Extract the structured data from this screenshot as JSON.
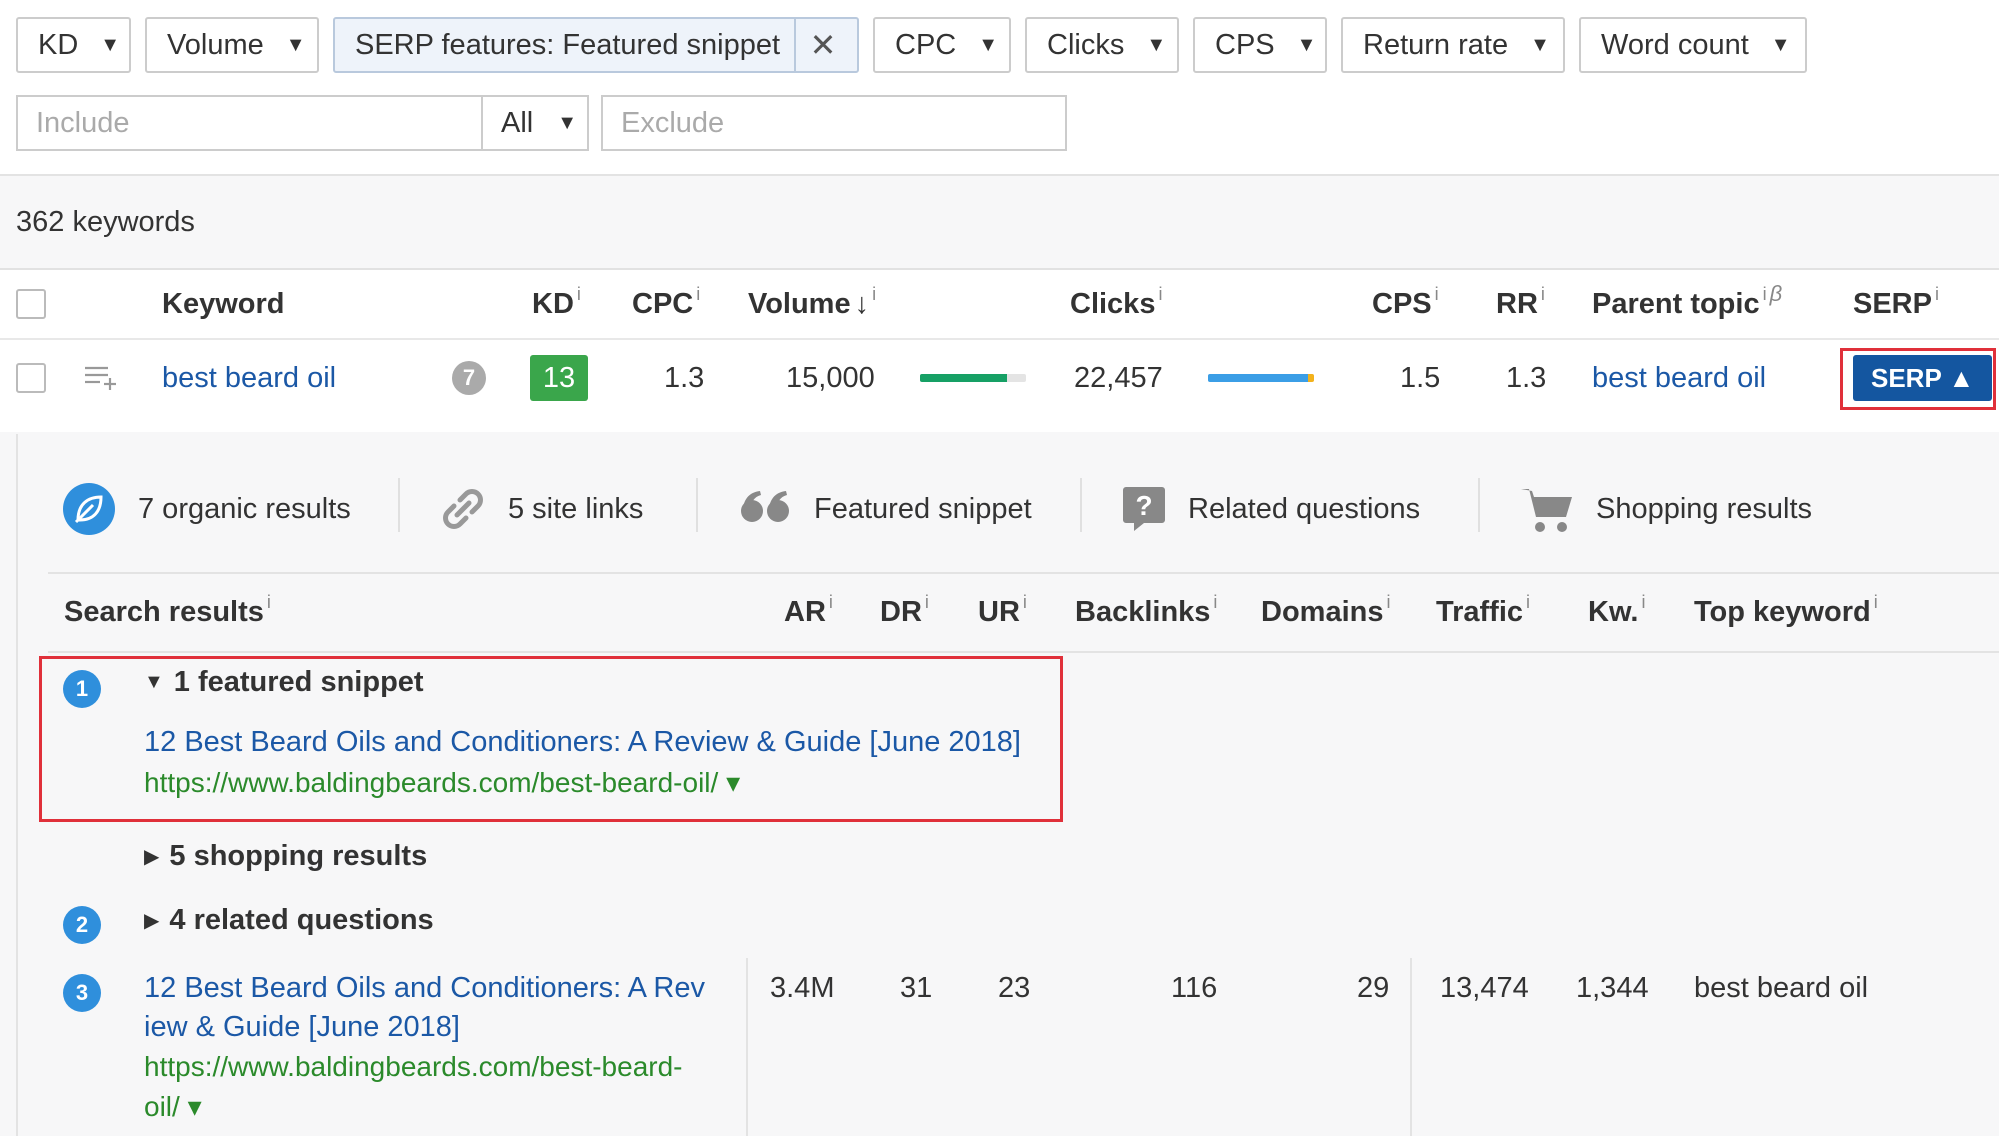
{
  "filters": {
    "kd": "KD",
    "volume": "Volume",
    "serp_features": "SERP features: Featured snippet",
    "cpc": "CPC",
    "clicks": "Clicks",
    "cps": "CPS",
    "return_rate": "Return rate",
    "word_count": "Word count",
    "include_placeholder": "Include",
    "match_select": "All",
    "exclude_placeholder": "Exclude"
  },
  "summary": {
    "count_text": "362 keywords"
  },
  "keyword_table": {
    "headers": {
      "keyword": "Keyword",
      "kd": "KD",
      "cpc": "CPC",
      "volume": "Volume",
      "volume_sort": "↓",
      "clicks": "Clicks",
      "cps": "CPS",
      "rr": "RR",
      "parent_topic": "Parent topic",
      "parent_topic_beta": "β",
      "serp": "SERP",
      "info": "i"
    },
    "row": {
      "keyword": "best beard oil",
      "badge": "7",
      "kd": "13",
      "cpc": "1.3",
      "volume": "15,000",
      "volume_bar_fraction": 0.82,
      "clicks": "22,457",
      "clicks_bar_fraction": 1.0,
      "cps": "1.5",
      "rr": "1.3",
      "parent_topic": "best beard oil",
      "serp_button": "SERP ▲"
    }
  },
  "serp_features": [
    {
      "icon": "leaf-icon",
      "label": "7 organic results"
    },
    {
      "icon": "link-icon",
      "label": "5 site links"
    },
    {
      "icon": "quote-icon",
      "label": "Featured snippet"
    },
    {
      "icon": "question-icon",
      "label": "Related questions"
    },
    {
      "icon": "cart-icon",
      "label": "Shopping results"
    }
  ],
  "results_table": {
    "headers": {
      "search_results": "Search results",
      "ar": "AR",
      "dr": "DR",
      "ur": "UR",
      "backlinks": "Backlinks",
      "domains": "Domains",
      "traffic": "Traffic",
      "kw": "Kw.",
      "top_keyword": "Top keyword",
      "info": "i"
    },
    "groups": [
      {
        "position": "1",
        "label": "1 featured snippet",
        "expanded": true,
        "title": "12 Best Beard Oils and Conditioners: A Review & Guide [June 2018]",
        "url": "https://www.baldingbeards.com/best-beard-oil/ ▾"
      },
      {
        "position": "",
        "label": "5 shopping results",
        "expanded": false
      },
      {
        "position": "2",
        "label": "4 related questions",
        "expanded": false
      }
    ],
    "row3": {
      "position": "3",
      "title_line1": "12 Best Beard Oils and Conditioners: A Rev",
      "title_line2": "iew & Guide [June 2018]",
      "url_line1": "https://www.baldingbeards.com/best-beard-",
      "url_line2": "oil/ ▾",
      "ar": "3.4M",
      "dr": "31",
      "ur": "23",
      "backlinks": "116",
      "domains": "29",
      "traffic": "13,474",
      "kw": "1,344",
      "top_keyword": "best beard oil"
    }
  },
  "colors": {
    "link": "#1b58a6",
    "url": "#2b8a2b",
    "kd_badge": "#3aa64b",
    "serp_button": "#1456a0",
    "highlight": "#e0303a",
    "volume_bar": "#16a065",
    "clicks_bar": "#3b9ee6"
  }
}
